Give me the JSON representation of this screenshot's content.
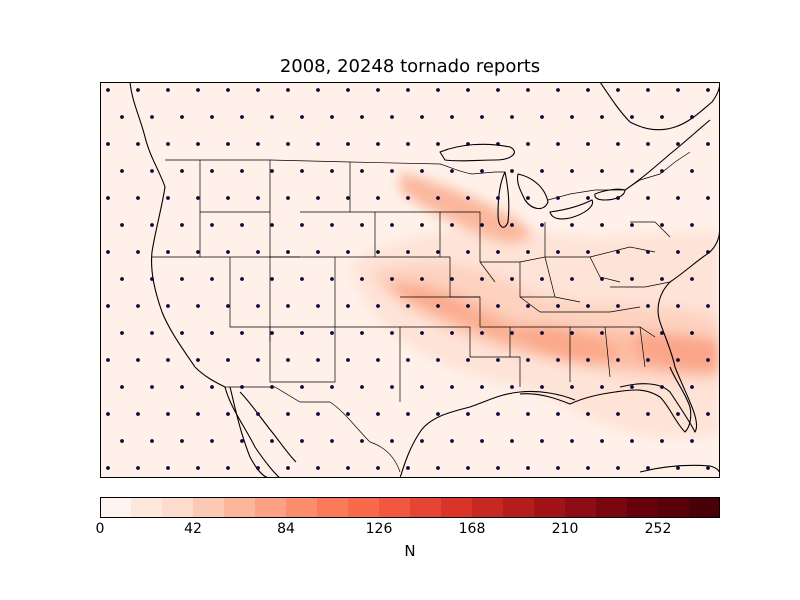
{
  "title": "2008, 20248 tornado reports",
  "colorbar": {
    "label": "N",
    "ticks": [
      "0",
      "42",
      "84",
      "126",
      "168",
      "210",
      "252"
    ],
    "tick_values": [
      0,
      42,
      84,
      126,
      168,
      210,
      252
    ],
    "range": [
      0,
      280
    ],
    "levels": 20,
    "colors": [
      "#fff5f0",
      "#fee8de",
      "#fddccd",
      "#fcc9b4",
      "#fcb69b",
      "#fca183",
      "#fc8d6d",
      "#fb7a5a",
      "#f96a4c",
      "#f2583f",
      "#e74534",
      "#d9332a",
      "#c52922",
      "#b41d1b",
      "#a21317",
      "#8e0c15",
      "#7a0610",
      "#67000d",
      "#5a000a",
      "#4a0008"
    ]
  },
  "map": {
    "region": "Continental United States with southern Canada and northern Mexico",
    "background_color": "#fff1ea",
    "dot_color": "#0a0a3a",
    "hotspots": [
      {
        "name": "Kansas-Missouri",
        "intensity": 84
      },
      {
        "name": "Mississippi-Alabama-Georgia",
        "intensity": 90
      },
      {
        "name": "Atlantic off Carolinas",
        "intensity": 95
      }
    ]
  }
}
